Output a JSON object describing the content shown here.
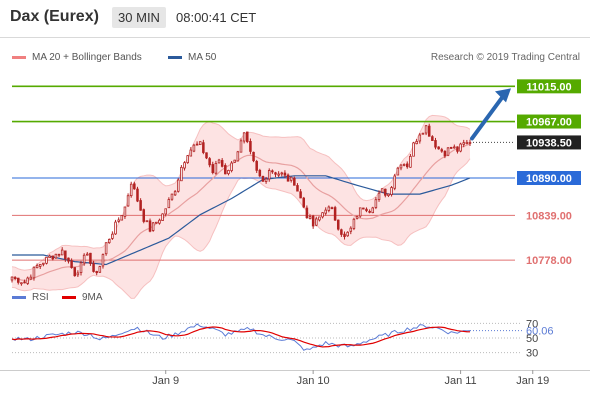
{
  "header": {
    "title": "Dax (Eurex)",
    "timeframe": "30 MIN",
    "time": "08:00:41 CET"
  },
  "legend": {
    "bb_label": "MA 20 + Bollinger Bands",
    "ma50_label": "MA 50",
    "copyright": "Research © 2019 Trading Central"
  },
  "colors": {
    "candle": "#b22222",
    "ma20": "#e8a0a0",
    "band_fill": "#fde3e3",
    "ma50": "#2b5a9b",
    "green_level": "#55aa00",
    "blue_level": "#2a6ad8",
    "red_level": "#e07070",
    "rsi": "#5b7bd5",
    "rsi_ma": "#e00000",
    "arrow": "#2a66b0"
  },
  "chart_data": [
    {
      "type": "candlestick",
      "ylim": [
        10740,
        11040
      ],
      "x_ticks": [
        {
          "label": "Jan 9",
          "index": 49
        },
        {
          "label": "Jan 10",
          "index": 96
        },
        {
          "label": "Jan 11",
          "index": 143
        },
        {
          "label": "Jan 19",
          "index": 166
        }
      ],
      "levels": [
        {
          "value": 11015.0,
          "label": "11015.00",
          "kind": "resistance",
          "color": "#55aa00"
        },
        {
          "value": 10967.0,
          "label": "10967.00",
          "kind": "resistance",
          "color": "#55aa00"
        },
        {
          "value": 10938.5,
          "label": "10938.50",
          "kind": "last",
          "color": "#222222"
        },
        {
          "value": 10890.0,
          "label": "10890.00",
          "kind": "pivot",
          "color": "#2a6ad8"
        },
        {
          "value": 10839.0,
          "label": "10839.00",
          "kind": "support",
          "color": "#e07070"
        },
        {
          "value": 10778.0,
          "label": "10778.00",
          "kind": "support",
          "color": "#e07070"
        }
      ],
      "arrow_target": 11015.0,
      "close_keypoints": [
        [
          0,
          10755
        ],
        [
          4,
          10748
        ],
        [
          8,
          10770
        ],
        [
          12,
          10782
        ],
        [
          16,
          10790
        ],
        [
          18,
          10776
        ],
        [
          20,
          10760
        ],
        [
          22,
          10770
        ],
        [
          24,
          10790
        ],
        [
          26,
          10758
        ],
        [
          28,
          10770
        ],
        [
          30,
          10800
        ],
        [
          33,
          10825
        ],
        [
          36,
          10850
        ],
        [
          38,
          10885
        ],
        [
          40,
          10860
        ],
        [
          42,
          10835
        ],
        [
          44,
          10820
        ],
        [
          46,
          10830
        ],
        [
          48,
          10840
        ],
        [
          50,
          10858
        ],
        [
          52,
          10875
        ],
        [
          54,
          10905
        ],
        [
          56,
          10925
        ],
        [
          58,
          10933
        ],
        [
          60,
          10935
        ],
        [
          62,
          10918
        ],
        [
          64,
          10898
        ],
        [
          66,
          10915
        ],
        [
          68,
          10898
        ],
        [
          70,
          10908
        ],
        [
          72,
          10928
        ],
        [
          74,
          10948
        ],
        [
          76,
          10922
        ],
        [
          78,
          10898
        ],
        [
          80,
          10885
        ],
        [
          82,
          10902
        ],
        [
          84,
          10898
        ],
        [
          86,
          10895
        ],
        [
          88,
          10888
        ],
        [
          90,
          10885
        ],
        [
          92,
          10862
        ],
        [
          94,
          10840
        ],
        [
          96,
          10825
        ],
        [
          98,
          10836
        ],
        [
          100,
          10850
        ],
        [
          102,
          10845
        ],
        [
          104,
          10825
        ],
        [
          106,
          10808
        ],
        [
          108,
          10820
        ],
        [
          110,
          10840
        ],
        [
          112,
          10852
        ],
        [
          114,
          10848
        ],
        [
          116,
          10860
        ],
        [
          118,
          10872
        ],
        [
          120,
          10868
        ],
        [
          122,
          10895
        ],
        [
          124,
          10912
        ],
        [
          126,
          10908
        ],
        [
          128,
          10935
        ],
        [
          130,
          10952
        ],
        [
          132,
          10960
        ],
        [
          134,
          10942
        ],
        [
          136,
          10930
        ],
        [
          138,
          10925
        ],
        [
          140,
          10932
        ],
        [
          142,
          10928
        ],
        [
          144,
          10936
        ],
        [
          146,
          10938.5
        ]
      ],
      "ma50_keypoints": [
        [
          0,
          10785
        ],
        [
          10,
          10785
        ],
        [
          20,
          10776
        ],
        [
          30,
          10772
        ],
        [
          40,
          10790
        ],
        [
          50,
          10808
        ],
        [
          60,
          10840
        ],
        [
          70,
          10862
        ],
        [
          80,
          10888
        ],
        [
          90,
          10893
        ],
        [
          100,
          10893
        ],
        [
          110,
          10880
        ],
        [
          120,
          10868
        ],
        [
          130,
          10868
        ],
        [
          140,
          10880
        ],
        [
          146,
          10890
        ]
      ]
    },
    {
      "type": "line",
      "title": "",
      "series": [
        {
          "name": "RSI",
          "last": 60.06
        },
        {
          "name": "9MA"
        }
      ],
      "ylim": [
        20,
        80
      ],
      "y_ticks": [
        70,
        50,
        30
      ],
      "last_label": "60.06",
      "rsi_keypoints": [
        [
          0,
          50
        ],
        [
          5,
          48
        ],
        [
          10,
          52
        ],
        [
          15,
          55
        ],
        [
          20,
          58
        ],
        [
          25,
          55
        ],
        [
          28,
          48
        ],
        [
          32,
          52
        ],
        [
          36,
          60
        ],
        [
          40,
          64
        ],
        [
          44,
          56
        ],
        [
          48,
          50
        ],
        [
          52,
          55
        ],
        [
          56,
          63
        ],
        [
          60,
          68
        ],
        [
          64,
          62
        ],
        [
          68,
          55
        ],
        [
          72,
          58
        ],
        [
          76,
          63
        ],
        [
          80,
          54
        ],
        [
          84,
          50
        ],
        [
          88,
          48
        ],
        [
          90,
          45
        ],
        [
          92,
          38
        ],
        [
          94,
          33
        ],
        [
          96,
          36
        ],
        [
          98,
          40
        ],
        [
          100,
          43
        ],
        [
          104,
          40
        ],
        [
          108,
          38
        ],
        [
          112,
          45
        ],
        [
          116,
          50
        ],
        [
          120,
          55
        ],
        [
          124,
          60
        ],
        [
          128,
          64
        ],
        [
          132,
          67
        ],
        [
          136,
          63
        ],
        [
          140,
          57
        ],
        [
          144,
          59
        ],
        [
          146,
          60.06
        ]
      ]
    }
  ]
}
